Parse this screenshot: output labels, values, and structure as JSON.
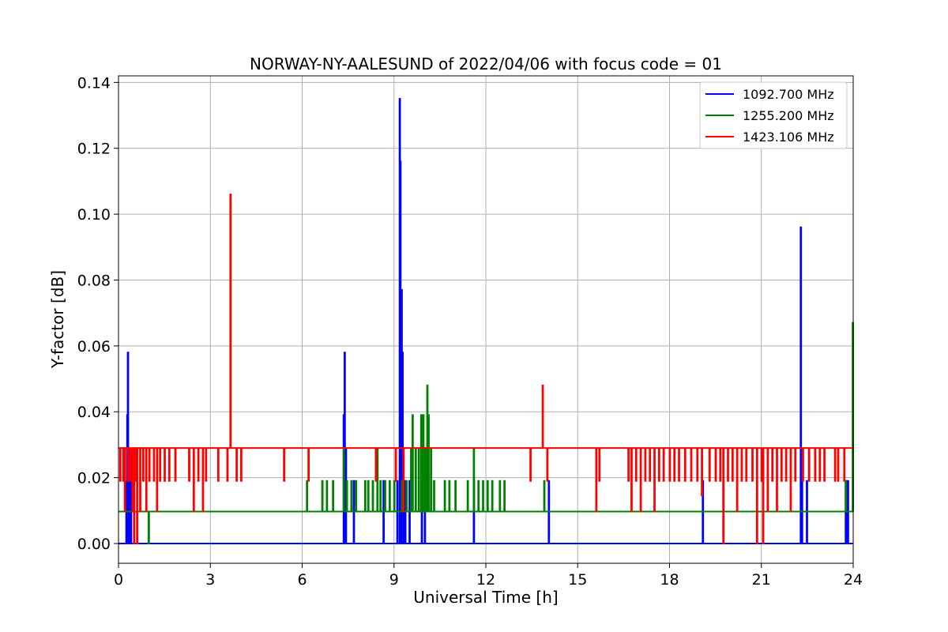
{
  "chart_data": {
    "type": "line",
    "title": "NORWAY-NY-AALESUND of 2022/04/06 with focus code = 01",
    "xlabel": "Universal Time [h]",
    "ylabel": "Y-factor [dB]",
    "xlim": [
      0,
      24
    ],
    "ylim": [
      -0.006,
      0.142
    ],
    "x_ticks": [
      0,
      3,
      6,
      9,
      12,
      15,
      18,
      21,
      24
    ],
    "x_tick_labels": [
      "0",
      "3",
      "6",
      "9",
      "12",
      "15",
      "18",
      "21",
      "24"
    ],
    "y_ticks": [
      0.0,
      0.02,
      0.04,
      0.06,
      0.08,
      0.1,
      0.12,
      0.14
    ],
    "y_tick_labels": [
      "0.00",
      "0.02",
      "0.04",
      "0.06",
      "0.08",
      "0.10",
      "0.12",
      "0.14"
    ],
    "grid": true,
    "legend_position": "top-right",
    "series": [
      {
        "name": "1092.700 MHz",
        "color": "#0000ff",
        "baseline": 0.0,
        "spikes": [
          [
            0.25,
            0.019
          ],
          [
            0.28,
            0.039
          ],
          [
            0.3,
            0.058
          ],
          [
            0.33,
            0.029
          ],
          [
            0.4,
            0.019
          ],
          [
            7.35,
            0.039
          ],
          [
            7.38,
            0.058
          ],
          [
            7.42,
            0.029
          ],
          [
            7.68,
            0.019
          ],
          [
            8.65,
            0.019
          ],
          [
            9.1,
            0.019
          ],
          [
            9.18,
            0.135
          ],
          [
            9.2,
            0.116
          ],
          [
            9.24,
            0.077
          ],
          [
            9.27,
            0.058
          ],
          [
            9.3,
            0.029
          ],
          [
            9.36,
            0.019
          ],
          [
            9.5,
            0.019
          ],
          [
            9.9,
            0.029
          ],
          [
            10.0,
            0.019
          ],
          [
            11.6,
            0.019
          ],
          [
            14.05,
            0.019
          ],
          [
            19.08,
            0.019
          ],
          [
            22.28,
            0.096
          ],
          [
            22.32,
            0.029
          ],
          [
            22.48,
            0.019
          ],
          [
            23.75,
            0.019
          ],
          [
            23.82,
            0.019
          ]
        ]
      },
      {
        "name": "1255.200 MHz",
        "color": "#008000",
        "baseline": 0.0097,
        "spikes": [
          [
            0.98,
            0.0
          ],
          [
            6.15,
            0.019
          ],
          [
            6.65,
            0.019
          ],
          [
            6.8,
            0.019
          ],
          [
            7.0,
            0.019
          ],
          [
            7.35,
            0.029
          ],
          [
            7.45,
            0.019
          ],
          [
            7.6,
            0.019
          ],
          [
            7.75,
            0.019
          ],
          [
            8.05,
            0.019
          ],
          [
            8.15,
            0.019
          ],
          [
            8.3,
            0.019
          ],
          [
            8.45,
            0.029
          ],
          [
            8.55,
            0.019
          ],
          [
            8.7,
            0.019
          ],
          [
            8.85,
            0.019
          ],
          [
            9.0,
            0.019
          ],
          [
            9.25,
            0.019
          ],
          [
            9.4,
            0.019
          ],
          [
            9.55,
            0.029
          ],
          [
            9.6,
            0.039
          ],
          [
            9.7,
            0.029
          ],
          [
            9.8,
            0.029
          ],
          [
            9.88,
            0.039
          ],
          [
            9.95,
            0.039
          ],
          [
            10.02,
            0.029
          ],
          [
            10.08,
            0.048
          ],
          [
            10.12,
            0.039
          ],
          [
            10.2,
            0.029
          ],
          [
            10.3,
            0.019
          ],
          [
            10.65,
            0.019
          ],
          [
            10.8,
            0.019
          ],
          [
            11.0,
            0.019
          ],
          [
            11.4,
            0.019
          ],
          [
            11.6,
            0.029
          ],
          [
            11.75,
            0.019
          ],
          [
            11.9,
            0.019
          ],
          [
            12.05,
            0.019
          ],
          [
            12.2,
            0.019
          ],
          [
            12.45,
            0.019
          ],
          [
            12.6,
            0.019
          ],
          [
            13.9,
            0.019
          ],
          [
            23.75,
            0.019
          ],
          [
            23.98,
            0.067
          ]
        ]
      },
      {
        "name": "1423.106 MHz",
        "color": "#ff0000",
        "baseline": 0.029,
        "spikes": [
          [
            0.05,
            0.019
          ],
          [
            0.15,
            0.019
          ],
          [
            0.2,
            0.0097
          ],
          [
            0.3,
            0.019
          ],
          [
            0.38,
            0.019
          ],
          [
            0.45,
            0.0097
          ],
          [
            0.5,
            0.0
          ],
          [
            0.55,
            0.019
          ],
          [
            0.6,
            0.0
          ],
          [
            0.7,
            0.0097
          ],
          [
            0.8,
            0.019
          ],
          [
            0.9,
            0.0097
          ],
          [
            1.0,
            0.019
          ],
          [
            1.15,
            0.019
          ],
          [
            1.25,
            0.0097
          ],
          [
            1.35,
            0.019
          ],
          [
            1.5,
            0.019
          ],
          [
            1.65,
            0.019
          ],
          [
            1.85,
            0.019
          ],
          [
            2.3,
            0.019
          ],
          [
            2.45,
            0.0097
          ],
          [
            2.6,
            0.019
          ],
          [
            2.75,
            0.0097
          ],
          [
            2.85,
            0.019
          ],
          [
            3.25,
            0.019
          ],
          [
            3.55,
            0.019
          ],
          [
            3.65,
            0.106
          ],
          [
            3.85,
            0.019
          ],
          [
            4.0,
            0.019
          ],
          [
            5.4,
            0.019
          ],
          [
            6.2,
            0.019
          ],
          [
            8.4,
            0.019
          ],
          [
            9.05,
            0.019
          ],
          [
            9.3,
            0.0097
          ],
          [
            13.45,
            0.019
          ],
          [
            13.85,
            0.048
          ],
          [
            14.0,
            0.019
          ],
          [
            15.6,
            0.0097
          ],
          [
            15.7,
            0.019
          ],
          [
            16.65,
            0.019
          ],
          [
            16.75,
            0.0097
          ],
          [
            16.9,
            0.019
          ],
          [
            17.05,
            0.0097
          ],
          [
            17.2,
            0.019
          ],
          [
            17.35,
            0.019
          ],
          [
            17.5,
            0.0097
          ],
          [
            17.65,
            0.019
          ],
          [
            17.8,
            0.019
          ],
          [
            18.0,
            0.019
          ],
          [
            18.15,
            0.019
          ],
          [
            18.3,
            0.019
          ],
          [
            18.5,
            0.019
          ],
          [
            18.7,
            0.019
          ],
          [
            18.9,
            0.019
          ],
          [
            19.05,
            0.0146
          ],
          [
            19.3,
            0.019
          ],
          [
            19.5,
            0.019
          ],
          [
            19.65,
            0.019
          ],
          [
            19.75,
            0.0
          ],
          [
            19.9,
            0.019
          ],
          [
            20.05,
            0.019
          ],
          [
            20.2,
            0.0097
          ],
          [
            20.35,
            0.019
          ],
          [
            20.5,
            0.019
          ],
          [
            20.7,
            0.019
          ],
          [
            20.85,
            0.0
          ],
          [
            21.0,
            0.019
          ],
          [
            21.05,
            0.0
          ],
          [
            21.2,
            0.0097
          ],
          [
            21.35,
            0.019
          ],
          [
            21.5,
            0.0097
          ],
          [
            21.65,
            0.019
          ],
          [
            21.8,
            0.019
          ],
          [
            21.95,
            0.0097
          ],
          [
            22.1,
            0.019
          ],
          [
            22.35,
            0.019
          ],
          [
            22.55,
            0.019
          ],
          [
            22.75,
            0.019
          ],
          [
            22.9,
            0.019
          ],
          [
            23.05,
            0.019
          ],
          [
            23.4,
            0.019
          ],
          [
            23.5,
            0.019
          ],
          [
            23.7,
            0.019
          ]
        ]
      }
    ]
  }
}
